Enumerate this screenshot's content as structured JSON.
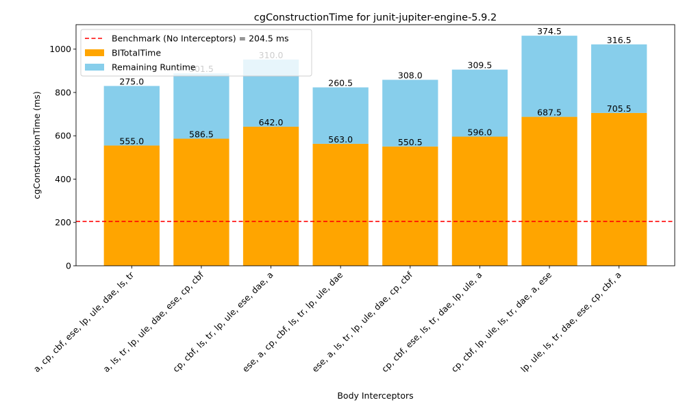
{
  "chart_data": {
    "type": "bar",
    "stacked": true,
    "title": "cgConstructionTime for junit-jupiter-engine-5.9.2",
    "xlabel": "Body Interceptors",
    "ylabel": "cgConstructionTime (ms)",
    "ylim": [
      0,
      1113
    ],
    "yticks": [
      0,
      200,
      400,
      600,
      800,
      1000
    ],
    "grid": false,
    "legend_position": "top-left",
    "categories": [
      "a, cp, cbf, ese, lp, ule, dae, ls, tr",
      "a, ls, tr, lp, ule, dae, ese, cp, cbf",
      "cp, cbf, ls, tr, lp, ule, ese, dae, a",
      "ese, a, cp, cbf, ls, tr, lp, ule, dae",
      "ese, a, ls, tr, lp, ule, dae, cp, cbf",
      "cp, cbf, ese, ls, tr, dae, lp, ule, a",
      "cp, cbf, lp, ule, ls, tr, dae, a, ese",
      "lp, ule, ls, tr, dae, ese, cp, cbf, a"
    ],
    "series": [
      {
        "name": "BITotalTime",
        "color": "#FFA500",
        "values": [
          555.0,
          586.5,
          642.0,
          563.0,
          550.5,
          596.0,
          687.5,
          705.5
        ],
        "labels": [
          "555.0",
          "586.5",
          "642.0",
          "563.0",
          "550.5",
          "596.0",
          "687.5",
          "705.5"
        ]
      },
      {
        "name": "Remaining Runtime",
        "color": "#87CEEB",
        "values": [
          275.0,
          301.5,
          310.0,
          260.5,
          308.0,
          309.5,
          374.5,
          316.5
        ],
        "labels": [
          "275.0",
          "301.5",
          "310.0",
          "260.5",
          "308.0",
          "309.5",
          "374.5",
          "316.5"
        ]
      }
    ],
    "benchmark": {
      "label": "Benchmark (No Interceptors) = 204.5 ms",
      "value": 204.5,
      "color": "#FF0000"
    }
  }
}
